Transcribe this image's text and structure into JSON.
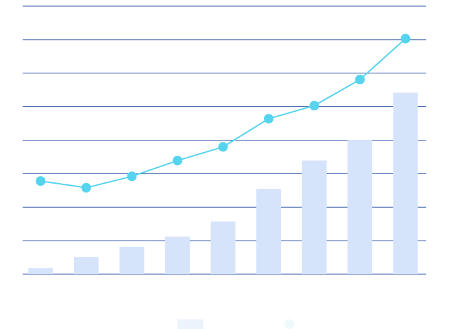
{
  "chart_data": {
    "type": "bar-line",
    "categories": [
      null,
      null,
      null,
      null,
      null,
      null,
      null,
      null,
      null
    ],
    "series": [
      {
        "type": "bar",
        "color": "#d6e4fb",
        "values": [
          0.18,
          0.51,
          0.82,
          1.12,
          1.57,
          2.54,
          3.39,
          4.01,
          5.42
        ]
      },
      {
        "type": "line",
        "color": "#56d3ef",
        "values": [
          2.78,
          2.58,
          2.92,
          3.39,
          3.8,
          4.64,
          5.03,
          5.81,
          7.03
        ]
      }
    ],
    "ylim": [
      0,
      8
    ],
    "yticks": [
      0,
      1,
      2,
      3,
      4,
      5,
      6,
      7,
      8
    ],
    "grid": true,
    "grid_color": "#2f55a4",
    "legend": "bottom"
  }
}
